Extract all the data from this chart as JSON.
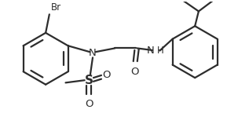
{
  "bg_color": "#ffffff",
  "line_color": "#2d2d2d",
  "text_color": "#2d2d2d",
  "bond_lw": 1.6,
  "figsize": [
    3.17,
    1.72
  ],
  "dpi": 100,
  "xlim": [
    0,
    10
  ],
  "ylim": [
    0,
    5.42
  ]
}
